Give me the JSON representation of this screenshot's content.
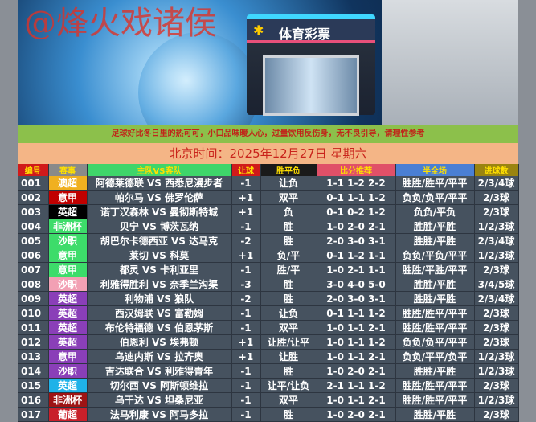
{
  "banner": {
    "watermark": "@烽火戏诸侯",
    "shop_sign": "体育彩票",
    "logo_icon": "sports-lottery-logo"
  },
  "notice": "足球好比冬日里的热可可，小口品味暖人心，过量饮用反伤身，无不良引导，请理性参考",
  "date_line": "北京时间：2025年12月27日  星期六",
  "columns": [
    {
      "label": "编号",
      "bg": "#d01a1a",
      "fg": "#ffe000"
    },
    {
      "label": "赛事",
      "bg": "#8a8a8a",
      "fg": "#ffe000"
    },
    {
      "label": "主队VS客队",
      "bg": "#3fd56a",
      "fg": "#ffe000"
    },
    {
      "label": "让球",
      "bg": "#d01a1a",
      "fg": "#ffe000"
    },
    {
      "label": "胜平负",
      "bg": "#1a1a1a",
      "fg": "#ffe000"
    },
    {
      "label": "比分推荐",
      "bg": "#e05068",
      "fg": "#ffe000"
    },
    {
      "label": "半全场",
      "bg": "#4a7fd4",
      "fg": "#ffe000"
    },
    {
      "label": "进球数",
      "bg": "#9a8410",
      "fg": "#ffe000"
    }
  ],
  "rows": [
    {
      "no": "001",
      "league": "澳超",
      "league_color": "#f0b020",
      "match": "阿德莱德联 VS 西悉尼漫步者",
      "handicap": "-1",
      "result": "让负",
      "scores": "1-1 1-2 2-2",
      "half_full": "胜胜/胜平/平平",
      "goals": "2/3/4球"
    },
    {
      "no": "002",
      "league": "意甲",
      "league_color": "#c00000",
      "match": "帕尔马 VS 佛罗伦萨",
      "handicap": "+1",
      "result": "双平",
      "scores": "0-1 1-1 1-2",
      "half_full": "负负/负平/平平",
      "goals": "2/3球"
    },
    {
      "no": "003",
      "league": "英超",
      "league_color": "#000000",
      "match": "诺丁汉森林 VS 曼彻斯特城",
      "handicap": "+1",
      "result": "负",
      "scores": "0-1 0-2 1-2",
      "half_full": "负负/平负",
      "goals": "2/3球"
    },
    {
      "no": "004",
      "league": "非洲杯",
      "league_color": "#3ddc6a",
      "match": "贝宁 VS 博茨瓦纳",
      "handicap": "-1",
      "result": "胜",
      "scores": "1-0 2-0 2-1",
      "half_full": "胜胜/平胜",
      "goals": "1/2/3球"
    },
    {
      "no": "005",
      "league": "沙职",
      "league_color": "#3ddc6a",
      "match": "胡巴尔卡德西亚 VS 达马克",
      "handicap": "-2",
      "result": "胜",
      "scores": "2-0 3-0 3-1",
      "half_full": "胜胜/平胜",
      "goals": "2/3/4球"
    },
    {
      "no": "006",
      "league": "意甲",
      "league_color": "#3ddc6a",
      "match": "莱切 VS 科莫",
      "handicap": "+1",
      "result": "负/平",
      "scores": "0-1 1-2 1-1",
      "half_full": "负负/平负/平平",
      "goals": "1/2/3球"
    },
    {
      "no": "007",
      "league": "意甲",
      "league_color": "#3ddc6a",
      "match": "都灵 VS 卡利亚里",
      "handicap": "-1",
      "result": "胜/平",
      "scores": "1-0 2-1 1-1",
      "half_full": "胜胜/平胜/平平",
      "goals": "2/3球"
    },
    {
      "no": "008",
      "league": "沙职",
      "league_color": "#f2a0b4",
      "match": "利雅得胜利 VS 奈季兰沟渠",
      "handicap": "-3",
      "result": "胜",
      "scores": "3-0 4-0 5-0",
      "half_full": "胜胜/平胜",
      "goals": "3/4/5球"
    },
    {
      "no": "009",
      "league": "英超",
      "league_color": "#8a3fb8",
      "match": "利物浦 VS 狼队",
      "handicap": "-2",
      "result": "胜",
      "scores": "2-0 3-0 3-1",
      "half_full": "胜胜/平胜",
      "goals": "2/3/4球"
    },
    {
      "no": "010",
      "league": "英超",
      "league_color": "#8a3fb8",
      "match": "西汉姆联 VS 富勒姆",
      "handicap": "-1",
      "result": "让负",
      "scores": "0-1 1-1 1-2",
      "half_full": "胜胜/胜平/平平",
      "goals": "2/3球"
    },
    {
      "no": "011",
      "league": "英超",
      "league_color": "#8a3fb8",
      "match": "布伦特福德 VS 伯恩茅斯",
      "handicap": "-1",
      "result": "双平",
      "scores": "1-0 1-1 2-1",
      "half_full": "胜胜/胜平/平平",
      "goals": "2/3球"
    },
    {
      "no": "012",
      "league": "英超",
      "league_color": "#8a3fb8",
      "match": "伯恩利 VS 埃弗顿",
      "handicap": "+1",
      "result": "让胜/让平",
      "scores": "1-0 1-1 1-2",
      "half_full": "负负/负平/平平",
      "goals": "2/3球"
    },
    {
      "no": "013",
      "league": "意甲",
      "league_color": "#8a3fb8",
      "match": "乌迪内斯 VS 拉齐奥",
      "handicap": "+1",
      "result": "让胜",
      "scores": "1-0 1-1 2-1",
      "half_full": "负负/平平/负平",
      "goals": "1/2/3球"
    },
    {
      "no": "014",
      "league": "沙职",
      "league_color": "#8a3fb8",
      "match": "吉达联合 VS 利雅得青年",
      "handicap": "-1",
      "result": "胜",
      "scores": "1-0 2-0 2-1",
      "half_full": "胜胜/平胜",
      "goals": "1/2/3球"
    },
    {
      "no": "015",
      "league": "英超",
      "league_color": "#1fb2e8",
      "match": "切尔西 VS 阿斯顿维拉",
      "handicap": "-1",
      "result": "让平/让负",
      "scores": "2-1 1-1 1-2",
      "half_full": "胜胜/胜平/平平",
      "goals": "2/3球"
    },
    {
      "no": "016",
      "league": "非洲杯",
      "league_color": "#9e1414",
      "match": "乌干达 VS 坦桑尼亚",
      "handicap": "-1",
      "result": "双平",
      "scores": "1-0 1-1 2-1",
      "half_full": "胜胜/胜平/平平",
      "goals": "1/2/3球"
    },
    {
      "no": "017",
      "league": "葡超",
      "league_color": "#c8202a",
      "match": "法马利康 VS 阿马多拉",
      "handicap": "-1",
      "result": "胜",
      "scores": "1-0 2-0 2-1",
      "half_full": "胜胜/平胜",
      "goals": "2/3球"
    }
  ]
}
